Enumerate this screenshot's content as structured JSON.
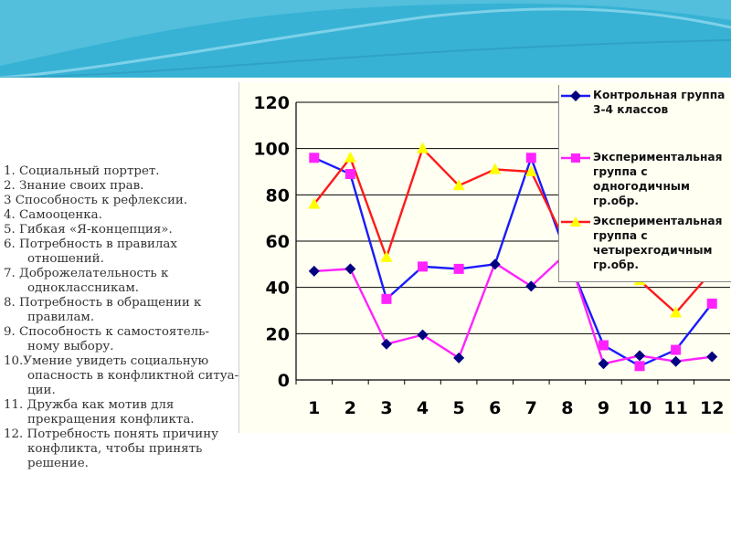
{
  "criteria": [
    {
      "first": "1.  Социальный портрет.",
      "rest": []
    },
    {
      "first": "2.  Знание  своих прав.",
      "rest": []
    },
    {
      "first": "3   Способность к рефлексии.",
      "rest": []
    },
    {
      "first": "4.  Самооценка.",
      "rest": []
    },
    {
      "first": "5.  Гибкая «Я-концепция».",
      "rest": []
    },
    {
      "first": "6.  Потребность в правилах",
      "rest": [
        "отношений."
      ]
    },
    {
      "first": "7.  Доброжелательность к",
      "rest": [
        "одноклассникам."
      ]
    },
    {
      "first": "8.  Потребность в обращении к",
      "rest": [
        "правилам."
      ]
    },
    {
      "first": "9.  Способность к самостоятель-",
      "rest": [
        "ному выбору."
      ]
    },
    {
      "first": "10.Умение увидеть социальную",
      "rest": [
        "опасность в конфликтной ситуа-",
        "  ции."
      ]
    },
    {
      "first": "11. Дружба как  мотив для",
      "rest": [
        "прекращения конфликта."
      ]
    },
    {
      "first": "12. Потребность понять причину",
      "rest": [
        "конфликта, чтобы принять",
        "  решение."
      ]
    }
  ],
  "chart_data": {
    "type": "line",
    "title": "",
    "xlabel": "",
    "ylabel": "",
    "x": [
      "1",
      "2",
      "3",
      "4",
      "5",
      "6",
      "7",
      "8",
      "9",
      "10",
      "11",
      "12"
    ],
    "ylim": [
      0,
      120
    ],
    "yticks": [
      "0",
      "20",
      "40",
      "60",
      "80",
      "100",
      "120"
    ],
    "grid": "horizontal",
    "legend_position": "top-right",
    "series": [
      {
        "name": "Контрольная группа 3-4 классов",
        "color": "#1a1aff",
        "marker": "diamond",
        "marker_color": "#000080",
        "values": [
          96,
          89,
          35,
          49,
          48,
          50,
          96,
          53,
          15,
          6,
          13,
          33
        ]
      },
      {
        "name": "Экспериментальная группа с одногодичным гр.обр.",
        "color": "#ff22ff",
        "marker": "square",
        "marker_color": "#ff22ff",
        "values": [
          47,
          48,
          15.5,
          19.5,
          9.5,
          50.5,
          40.5,
          55,
          7,
          10.5,
          8,
          10
        ]
      },
      {
        "name": "Экспериментальная группа с четырехгодичным гр.обр.",
        "color": "#ff1a1a",
        "marker": "triangle",
        "marker_color": "#ffff00",
        "values": [
          76,
          96,
          53,
          100,
          84,
          91,
          90,
          58,
          53,
          43,
          29,
          47
        ]
      }
    ],
    "plotted_markers": [
      {
        "series": 0,
        "marker": "diamond",
        "marker_color": "#000080",
        "values": [
          null,
          null,
          null,
          null,
          null,
          50,
          null,
          53,
          7,
          10.5,
          8,
          10
        ]
      },
      {
        "series": 1,
        "marker": "square",
        "marker_color": "#ff22ff",
        "values": [
          96,
          89,
          35,
          49,
          48,
          null,
          96,
          55,
          15,
          6,
          13,
          33
        ]
      },
      {
        "series": 0,
        "marker": "diamond",
        "marker_color": "#000080",
        "values": [
          47,
          48,
          15.5,
          19.5,
          9.5,
          null,
          40.5,
          null,
          null,
          null,
          null,
          null
        ]
      },
      {
        "series": 2,
        "marker": "triangle",
        "marker_color": "#ffff00",
        "values": [
          76,
          96,
          53,
          100,
          84,
          91,
          90,
          58,
          53,
          43,
          29,
          47
        ]
      }
    ]
  }
}
